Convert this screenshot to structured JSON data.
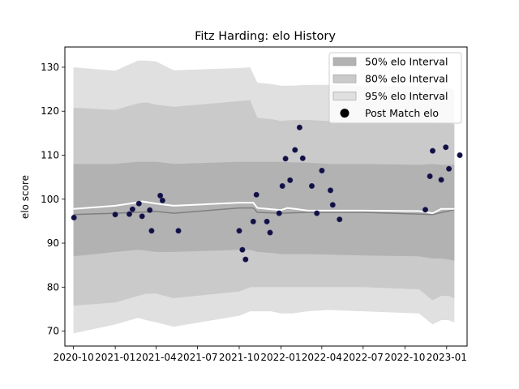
{
  "chart_data": {
    "type": "area",
    "title": "Fitz Harding: elo History",
    "xlabel": "",
    "ylabel": "elo score",
    "xlim": [
      "2020-09-12",
      "2023-02-15"
    ],
    "ylim": [
      66.6,
      134.6
    ],
    "x_ticks": [
      "2020-10",
      "2021-01",
      "2021-04",
      "2021-07",
      "2021-10",
      "2022-01",
      "2022-04",
      "2022-07",
      "2022-10",
      "2023-01"
    ],
    "y_ticks": [
      70,
      80,
      90,
      100,
      110,
      120,
      130
    ],
    "grid": false,
    "legend_position": "top-right",
    "legend": [
      {
        "label": "50% elo Interval",
        "kind": "patch",
        "color": "#b2b2b2"
      },
      {
        "label": "80% elo Interval",
        "kind": "patch",
        "color": "#cacaca"
      },
      {
        "label": "95% elo Interval",
        "kind": "patch",
        "color": "#e0e0e0"
      },
      {
        "label": "Post Match elo",
        "kind": "dot",
        "color": "#000000"
      }
    ],
    "colors": {
      "band50": "#b2b2b2",
      "band80": "#cacaca",
      "band95": "#e0e0e0",
      "mean_line": "#7f7f7f",
      "median_line": "#ffffff",
      "points": "#12103f"
    },
    "bands": {
      "dates": [
        "2020-10-01",
        "2021-01-01",
        "2021-02-20",
        "2021-03-10",
        "2021-04-01",
        "2021-05-10",
        "2021-10-01",
        "2021-10-25",
        "2021-11-10",
        "2021-12-10",
        "2022-01-01",
        "2022-01-25",
        "2022-03-01",
        "2022-04-15",
        "2022-07-01",
        "2022-11-01",
        "2022-12-01",
        "2022-12-20",
        "2023-01-05",
        "2023-01-18"
      ],
      "p95_low": [
        69.5,
        71.5,
        73.0,
        72.5,
        72.0,
        71.0,
        73.5,
        74.5,
        74.5,
        74.5,
        74.0,
        74.0,
        74.5,
        74.8,
        74.5,
        74.0,
        71.5,
        72.5,
        72.5,
        72.0
      ],
      "p80_low": [
        75.8,
        76.5,
        78.0,
        78.5,
        78.5,
        77.5,
        79.0,
        80.0,
        80.0,
        80.0,
        80.0,
        80.0,
        80.0,
        80.0,
        80.0,
        79.5,
        77.0,
        78.0,
        78.0,
        77.5
      ],
      "p50_low": [
        87.0,
        88.0,
        88.5,
        88.3,
        88.0,
        88.0,
        88.5,
        88.5,
        88.0,
        87.8,
        87.5,
        87.5,
        87.5,
        87.4,
        87.2,
        87.0,
        86.5,
        86.5,
        86.3,
        86.0
      ],
      "p50_high": [
        108.0,
        108.0,
        108.5,
        108.5,
        108.5,
        108.0,
        108.5,
        108.5,
        108.5,
        108.5,
        108.5,
        108.4,
        108.3,
        108.0,
        108.0,
        107.8,
        108.0,
        107.8,
        107.8,
        107.8
      ],
      "p80_high": [
        120.8,
        120.3,
        121.8,
        122.0,
        121.5,
        121.0,
        122.3,
        122.5,
        118.5,
        118.2,
        117.8,
        118.0,
        118.0,
        117.8,
        117.6,
        117.5,
        117.5,
        117.3,
        117.2,
        117.0
      ],
      "p95_high": [
        130.0,
        129.2,
        131.5,
        131.5,
        131.3,
        129.3,
        129.8,
        130.0,
        126.5,
        126.2,
        125.8,
        125.8,
        126.0,
        126.0,
        125.8,
        125.6,
        125.5,
        125.3,
        125.2,
        125.0
      ]
    },
    "mean_line": {
      "dates": [
        "2020-10-01",
        "2021-01-01",
        "2021-04-01",
        "2021-05-10",
        "2021-10-01",
        "2021-11-01",
        "2021-11-10",
        "2022-01-01",
        "2022-03-01",
        "2022-07-01",
        "2022-11-01",
        "2022-12-01",
        "2023-01-18"
      ],
      "values": [
        96.5,
        96.8,
        97.2,
        96.8,
        98.0,
        98.0,
        97.0,
        96.8,
        97.0,
        97.0,
        96.6,
        96.5,
        97.6
      ]
    },
    "median_line": {
      "dates": [
        "2020-10-01",
        "2021-01-01",
        "2021-02-15",
        "2021-03-01",
        "2021-04-01",
        "2021-05-10",
        "2021-10-01",
        "2021-11-01",
        "2021-11-10",
        "2022-01-01",
        "2022-01-15",
        "2022-02-01",
        "2022-03-01",
        "2022-07-01",
        "2022-11-01",
        "2022-12-01",
        "2022-12-20",
        "2023-01-18"
      ],
      "values": [
        97.8,
        98.5,
        99.2,
        99.5,
        99.0,
        98.5,
        99.2,
        99.2,
        98.0,
        97.5,
        98.0,
        97.8,
        97.4,
        97.4,
        97.3,
        96.8,
        97.8,
        97.8
      ]
    },
    "points": {
      "dates": [
        "2020-10-02",
        "2021-01-01",
        "2021-02-01",
        "2021-02-08",
        "2021-02-22",
        "2021-03-01",
        "2021-03-18",
        "2021-03-22",
        "2021-04-10",
        "2021-04-15",
        "2021-05-20",
        "2021-10-01",
        "2021-10-08",
        "2021-10-15",
        "2021-11-01",
        "2021-11-08",
        "2021-12-01",
        "2021-12-08",
        "2021-12-28",
        "2022-01-04",
        "2022-01-11",
        "2022-01-21",
        "2022-02-01",
        "2022-02-11",
        "2022-02-18",
        "2022-03-10",
        "2022-03-21",
        "2022-04-01",
        "2022-04-20",
        "2022-04-25",
        "2022-05-10",
        "2022-11-15",
        "2022-11-25",
        "2022-12-01",
        "2022-12-20",
        "2022-12-30",
        "2023-01-06",
        "2023-01-30"
      ],
      "values": [
        95.8,
        96.5,
        96.6,
        97.7,
        99.0,
        96.1,
        97.5,
        92.8,
        100.8,
        99.7,
        92.8,
        92.8,
        88.5,
        86.3,
        94.9,
        101.0,
        94.9,
        92.4,
        96.8,
        103.0,
        109.2,
        104.3,
        111.2,
        116.3,
        109.3,
        103.0,
        96.8,
        106.5,
        102.0,
        98.7,
        95.4,
        97.6,
        105.2,
        111.0,
        104.4,
        111.8,
        106.9,
        110.0
      ]
    }
  }
}
